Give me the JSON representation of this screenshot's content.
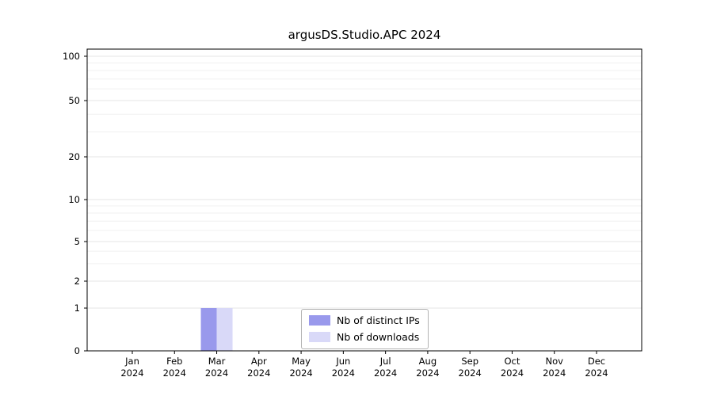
{
  "chart_data": {
    "type": "bar",
    "title": "argusDS.Studio.APC 2024",
    "categories": [
      {
        "month": "Jan",
        "year": "2024"
      },
      {
        "month": "Feb",
        "year": "2024"
      },
      {
        "month": "Mar",
        "year": "2024"
      },
      {
        "month": "Apr",
        "year": "2024"
      },
      {
        "month": "May",
        "year": "2024"
      },
      {
        "month": "Jun",
        "year": "2024"
      },
      {
        "month": "Jul",
        "year": "2024"
      },
      {
        "month": "Aug",
        "year": "2024"
      },
      {
        "month": "Sep",
        "year": "2024"
      },
      {
        "month": "Oct",
        "year": "2024"
      },
      {
        "month": "Nov",
        "year": "2024"
      },
      {
        "month": "Dec",
        "year": "2024"
      }
    ],
    "series": [
      {
        "label": "Nb of distinct IPs",
        "color": "#9999ec",
        "values": [
          0,
          0,
          1,
          0,
          0,
          0,
          0,
          0,
          0,
          0,
          0,
          0
        ]
      },
      {
        "label": "Nb of downloads",
        "color": "#d9d9f8",
        "values": [
          0,
          0,
          1,
          0,
          0,
          0,
          0,
          0,
          0,
          0,
          0,
          0
        ]
      }
    ],
    "yticks": [
      0,
      1,
      2,
      5,
      10,
      20,
      50,
      100
    ],
    "yscale": "symlog",
    "ylim": [
      0,
      110
    ],
    "xlabel": "",
    "ylabel": "",
    "grid": true,
    "legend_position": "lower center"
  }
}
